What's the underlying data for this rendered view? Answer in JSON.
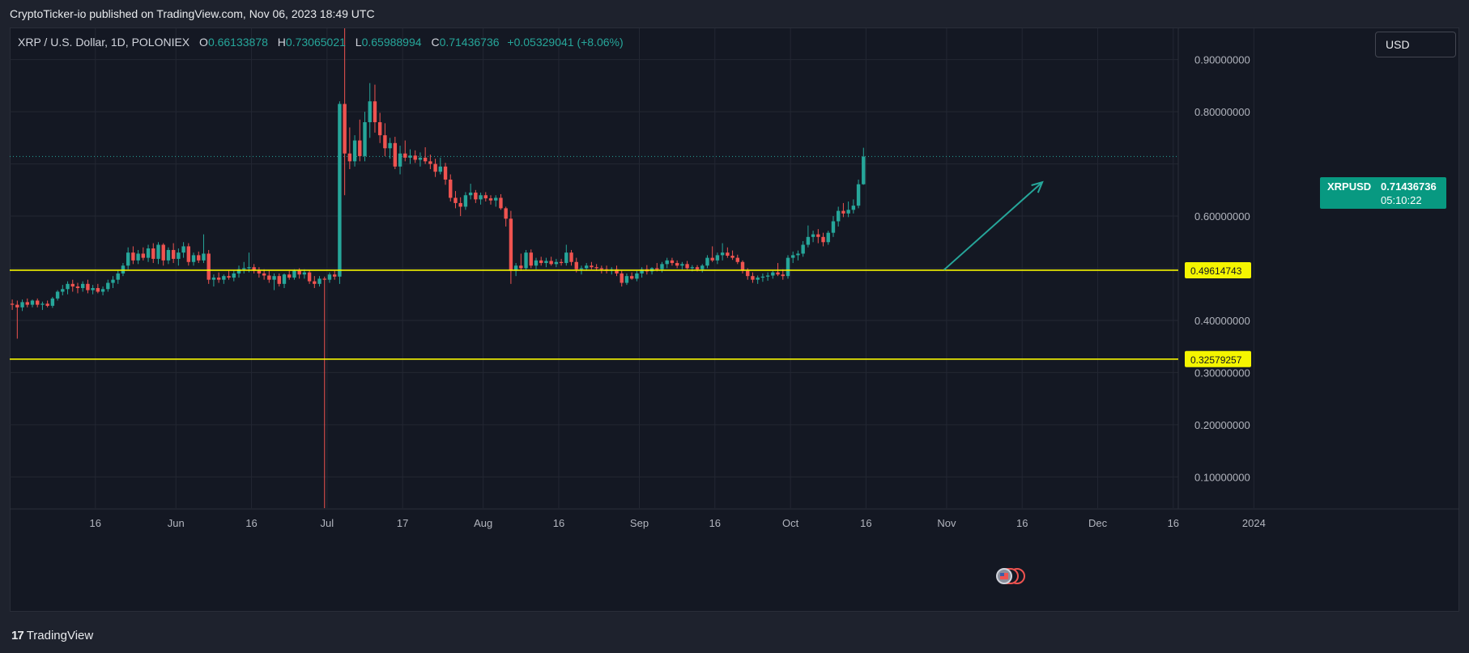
{
  "header": {
    "publish_text": "CryptoTicker-io published on TradingView.com, Nov 06, 2023 18:49 UTC"
  },
  "legend": {
    "symbol": "XRP / U.S. Dollar, 1D, POLONIEX",
    "open_label": "O",
    "open": "0.66133878",
    "high_label": "H",
    "high": "0.73065021",
    "low_label": "L",
    "low": "0.65988994",
    "close_label": "C",
    "close": "0.71436736",
    "change": "+0.05329041 (+8.06%)"
  },
  "currency_button": "USD",
  "footer": {
    "brand": "TradingView",
    "logo": "17"
  },
  "price_tag": {
    "symbol": "XRPUSD",
    "value": "0.71436736",
    "countdown": "05:10:22",
    "color": "#089981"
  },
  "colors": {
    "up": "#26a69a",
    "down": "#ef5350",
    "level": "#f5f500",
    "arrow": "#26a69a",
    "background": "#141823"
  },
  "chart_data": {
    "type": "candlestick",
    "ylim": [
      0.04,
      0.96
    ],
    "y_ticks": [
      {
        "v": 0.9,
        "label": "0.90000000"
      },
      {
        "v": 0.8,
        "label": "0.80000000"
      },
      {
        "v": 0.6,
        "label": "0.60000000"
      },
      {
        "v": 0.4,
        "label": "0.40000000"
      },
      {
        "v": 0.3,
        "label": "0.30000000"
      },
      {
        "v": 0.2,
        "label": "0.20000000"
      },
      {
        "v": 0.1,
        "label": "0.10000000"
      }
    ],
    "x_ticks": [
      {
        "day": 17,
        "label": "16"
      },
      {
        "day": 33,
        "label": "Jun"
      },
      {
        "day": 48,
        "label": "16"
      },
      {
        "day": 63,
        "label": "Jul"
      },
      {
        "day": 78,
        "label": "17"
      },
      {
        "day": 94,
        "label": "Aug"
      },
      {
        "day": 109,
        "label": "16"
      },
      {
        "day": 125,
        "label": "Sep"
      },
      {
        "day": 140,
        "label": "16"
      },
      {
        "day": 155,
        "label": "Oct"
      },
      {
        "day": 170,
        "label": "16"
      },
      {
        "day": 186,
        "label": "Nov"
      },
      {
        "day": 201,
        "label": "16"
      },
      {
        "day": 216,
        "label": "Dec"
      },
      {
        "day": 231,
        "label": "16"
      },
      {
        "day": 247,
        "label": "2024"
      }
    ],
    "horizontal_levels": [
      {
        "value": 0.49614743,
        "label": "0.49614743"
      },
      {
        "value": 0.32579257,
        "label": "0.32579257"
      }
    ],
    "last_price": 0.71436736,
    "trend_arrow": {
      "start": [
        185.5,
        0.497
      ],
      "end": [
        205,
        0.665
      ]
    },
    "candles": [
      [
        0.432,
        0.44,
        0.42,
        0.43
      ],
      [
        0.43,
        0.438,
        0.365,
        0.425
      ],
      [
        0.425,
        0.44,
        0.418,
        0.435
      ],
      [
        0.435,
        0.442,
        0.425,
        0.43
      ],
      [
        0.43,
        0.44,
        0.425,
        0.438
      ],
      [
        0.438,
        0.442,
        0.425,
        0.43
      ],
      [
        0.43,
        0.436,
        0.42,
        0.432
      ],
      [
        0.432,
        0.438,
        0.425,
        0.428
      ],
      [
        0.428,
        0.445,
        0.424,
        0.442
      ],
      [
        0.442,
        0.458,
        0.438,
        0.455
      ],
      [
        0.455,
        0.468,
        0.448,
        0.46
      ],
      [
        0.46,
        0.475,
        0.45,
        0.47
      ],
      [
        0.47,
        0.478,
        0.455,
        0.465
      ],
      [
        0.465,
        0.472,
        0.452,
        0.462
      ],
      [
        0.462,
        0.475,
        0.455,
        0.47
      ],
      [
        0.47,
        0.478,
        0.452,
        0.458
      ],
      [
        0.458,
        0.468,
        0.45,
        0.462
      ],
      [
        0.462,
        0.47,
        0.452,
        0.455
      ],
      [
        0.455,
        0.465,
        0.448,
        0.46
      ],
      [
        0.46,
        0.478,
        0.455,
        0.472
      ],
      [
        0.472,
        0.485,
        0.462,
        0.478
      ],
      [
        0.478,
        0.495,
        0.47,
        0.49
      ],
      [
        0.49,
        0.51,
        0.485,
        0.505
      ],
      [
        0.505,
        0.54,
        0.498,
        0.53
      ],
      [
        0.53,
        0.542,
        0.508,
        0.515
      ],
      [
        0.515,
        0.535,
        0.508,
        0.528
      ],
      [
        0.528,
        0.54,
        0.515,
        0.52
      ],
      [
        0.52,
        0.545,
        0.512,
        0.538
      ],
      [
        0.538,
        0.548,
        0.51,
        0.518
      ],
      [
        0.518,
        0.55,
        0.508,
        0.545
      ],
      [
        0.545,
        0.548,
        0.505,
        0.515
      ],
      [
        0.515,
        0.54,
        0.508,
        0.535
      ],
      [
        0.535,
        0.548,
        0.51,
        0.518
      ],
      [
        0.518,
        0.538,
        0.505,
        0.53
      ],
      [
        0.53,
        0.55,
        0.52,
        0.542
      ],
      [
        0.542,
        0.548,
        0.505,
        0.512
      ],
      [
        0.512,
        0.53,
        0.505,
        0.525
      ],
      [
        0.525,
        0.532,
        0.51,
        0.515
      ],
      [
        0.515,
        0.565,
        0.51,
        0.528
      ],
      [
        0.528,
        0.535,
        0.47,
        0.478
      ],
      [
        0.478,
        0.488,
        0.465,
        0.482
      ],
      [
        0.482,
        0.492,
        0.472,
        0.478
      ],
      [
        0.478,
        0.488,
        0.47,
        0.485
      ],
      [
        0.485,
        0.495,
        0.478,
        0.482
      ],
      [
        0.482,
        0.495,
        0.475,
        0.49
      ],
      [
        0.49,
        0.505,
        0.482,
        0.498
      ],
      [
        0.498,
        0.512,
        0.49,
        0.5
      ],
      [
        0.5,
        0.53,
        0.492,
        0.502
      ],
      [
        0.502,
        0.508,
        0.49,
        0.495
      ],
      [
        0.495,
        0.502,
        0.482,
        0.49
      ],
      [
        0.49,
        0.498,
        0.478,
        0.486
      ],
      [
        0.486,
        0.495,
        0.472,
        0.478
      ],
      [
        0.478,
        0.49,
        0.458,
        0.485
      ],
      [
        0.485,
        0.49,
        0.465,
        0.47
      ],
      [
        0.47,
        0.49,
        0.462,
        0.488
      ],
      [
        0.488,
        0.495,
        0.478,
        0.482
      ],
      [
        0.482,
        0.498,
        0.478,
        0.495
      ],
      [
        0.495,
        0.5,
        0.48,
        0.488
      ],
      [
        0.488,
        0.498,
        0.48,
        0.492
      ],
      [
        0.492,
        0.496,
        0.47,
        0.475
      ],
      [
        0.475,
        0.485,
        0.462,
        0.47
      ],
      [
        0.47,
        0.485,
        0.465,
        0.48
      ],
      [
        0.48,
        0.484,
        0.04,
        0.478
      ],
      [
        0.478,
        0.492,
        0.472,
        0.488
      ],
      [
        0.488,
        0.495,
        0.478,
        0.484
      ],
      [
        0.484,
        0.82,
        0.47,
        0.815
      ],
      [
        0.815,
        0.96,
        0.64,
        0.72
      ],
      [
        0.72,
        0.77,
        0.69,
        0.705
      ],
      [
        0.705,
        0.755,
        0.695,
        0.745
      ],
      [
        0.745,
        0.785,
        0.705,
        0.715
      ],
      [
        0.715,
        0.8,
        0.705,
        0.78
      ],
      [
        0.78,
        0.855,
        0.75,
        0.82
      ],
      [
        0.82,
        0.852,
        0.76,
        0.78
      ],
      [
        0.78,
        0.798,
        0.74,
        0.755
      ],
      [
        0.755,
        0.778,
        0.715,
        0.73
      ],
      [
        0.73,
        0.75,
        0.71,
        0.74
      ],
      [
        0.74,
        0.752,
        0.69,
        0.695
      ],
      [
        0.695,
        0.735,
        0.68,
        0.72
      ],
      [
        0.72,
        0.745,
        0.705,
        0.712
      ],
      [
        0.712,
        0.728,
        0.7,
        0.716
      ],
      [
        0.716,
        0.726,
        0.702,
        0.708
      ],
      [
        0.708,
        0.722,
        0.695,
        0.712
      ],
      [
        0.712,
        0.732,
        0.7,
        0.705
      ],
      [
        0.705,
        0.718,
        0.69,
        0.7
      ],
      [
        0.7,
        0.71,
        0.675,
        0.685
      ],
      [
        0.685,
        0.712,
        0.68,
        0.695
      ],
      [
        0.695,
        0.702,
        0.66,
        0.67
      ],
      [
        0.67,
        0.68,
        0.628,
        0.635
      ],
      [
        0.635,
        0.648,
        0.615,
        0.625
      ],
      [
        0.625,
        0.636,
        0.6,
        0.618
      ],
      [
        0.618,
        0.646,
        0.612,
        0.64
      ],
      [
        0.64,
        0.662,
        0.632,
        0.645
      ],
      [
        0.645,
        0.65,
        0.625,
        0.632
      ],
      [
        0.632,
        0.645,
        0.622,
        0.64
      ],
      [
        0.64,
        0.646,
        0.628,
        0.634
      ],
      [
        0.634,
        0.64,
        0.622,
        0.63
      ],
      [
        0.63,
        0.64,
        0.618,
        0.635
      ],
      [
        0.635,
        0.642,
        0.612,
        0.615
      ],
      [
        0.615,
        0.618,
        0.58,
        0.595
      ],
      [
        0.595,
        0.61,
        0.47,
        0.495
      ],
      [
        0.495,
        0.51,
        0.485,
        0.505
      ],
      [
        0.505,
        0.528,
        0.495,
        0.5
      ],
      [
        0.5,
        0.535,
        0.496,
        0.53
      ],
      [
        0.53,
        0.536,
        0.5,
        0.505
      ],
      [
        0.505,
        0.52,
        0.498,
        0.515
      ],
      [
        0.515,
        0.522,
        0.505,
        0.51
      ],
      [
        0.51,
        0.52,
        0.502,
        0.514
      ],
      [
        0.514,
        0.522,
        0.505,
        0.508
      ],
      [
        0.508,
        0.518,
        0.502,
        0.512
      ],
      [
        0.512,
        0.518,
        0.505,
        0.51
      ],
      [
        0.51,
        0.545,
        0.505,
        0.53
      ],
      [
        0.53,
        0.535,
        0.505,
        0.512
      ],
      [
        0.512,
        0.52,
        0.492,
        0.498
      ],
      [
        0.498,
        0.505,
        0.488,
        0.5
      ],
      [
        0.5,
        0.51,
        0.495,
        0.505
      ],
      [
        0.505,
        0.512,
        0.498,
        0.502
      ],
      [
        0.502,
        0.508,
        0.495,
        0.5
      ],
      [
        0.5,
        0.505,
        0.49,
        0.498
      ],
      [
        0.498,
        0.505,
        0.49,
        0.495
      ],
      [
        0.495,
        0.502,
        0.488,
        0.498
      ],
      [
        0.498,
        0.505,
        0.485,
        0.49
      ],
      [
        0.49,
        0.495,
        0.465,
        0.472
      ],
      [
        0.472,
        0.49,
        0.468,
        0.485
      ],
      [
        0.485,
        0.492,
        0.478,
        0.48
      ],
      [
        0.48,
        0.495,
        0.475,
        0.49
      ],
      [
        0.49,
        0.502,
        0.482,
        0.498
      ],
      [
        0.498,
        0.506,
        0.488,
        0.494
      ],
      [
        0.494,
        0.502,
        0.488,
        0.5
      ],
      [
        0.5,
        0.51,
        0.494,
        0.498
      ],
      [
        0.498,
        0.512,
        0.492,
        0.508
      ],
      [
        0.508,
        0.52,
        0.5,
        0.515
      ],
      [
        0.515,
        0.52,
        0.505,
        0.51
      ],
      [
        0.51,
        0.515,
        0.5,
        0.505
      ],
      [
        0.505,
        0.512,
        0.498,
        0.508
      ],
      [
        0.508,
        0.514,
        0.498,
        0.5
      ],
      [
        0.5,
        0.506,
        0.494,
        0.502
      ],
      [
        0.502,
        0.506,
        0.494,
        0.498
      ],
      [
        0.498,
        0.508,
        0.492,
        0.505
      ],
      [
        0.505,
        0.525,
        0.5,
        0.52
      ],
      [
        0.52,
        0.542,
        0.512,
        0.515
      ],
      [
        0.515,
        0.53,
        0.508,
        0.525
      ],
      [
        0.525,
        0.548,
        0.515,
        0.53
      ],
      [
        0.53,
        0.54,
        0.52,
        0.524
      ],
      [
        0.524,
        0.534,
        0.516,
        0.52
      ],
      [
        0.52,
        0.526,
        0.508,
        0.512
      ],
      [
        0.512,
        0.515,
        0.49,
        0.495
      ],
      [
        0.495,
        0.5,
        0.478,
        0.485
      ],
      [
        0.485,
        0.492,
        0.472,
        0.478
      ],
      [
        0.478,
        0.486,
        0.47,
        0.482
      ],
      [
        0.482,
        0.49,
        0.474,
        0.484
      ],
      [
        0.484,
        0.492,
        0.476,
        0.486
      ],
      [
        0.486,
        0.495,
        0.48,
        0.492
      ],
      [
        0.492,
        0.51,
        0.485,
        0.488
      ],
      [
        0.488,
        0.498,
        0.478,
        0.485
      ],
      [
        0.485,
        0.525,
        0.48,
        0.52
      ],
      [
        0.52,
        0.532,
        0.51,
        0.525
      ],
      [
        0.525,
        0.534,
        0.515,
        0.528
      ],
      [
        0.528,
        0.552,
        0.522,
        0.545
      ],
      [
        0.545,
        0.582,
        0.54,
        0.56
      ],
      [
        0.56,
        0.572,
        0.55,
        0.565
      ],
      [
        0.565,
        0.575,
        0.548,
        0.56
      ],
      [
        0.56,
        0.568,
        0.542,
        0.55
      ],
      [
        0.55,
        0.572,
        0.545,
        0.568
      ],
      [
        0.568,
        0.6,
        0.56,
        0.59
      ],
      [
        0.59,
        0.618,
        0.58,
        0.61
      ],
      [
        0.61,
        0.625,
        0.598,
        0.605
      ],
      [
        0.605,
        0.628,
        0.598,
        0.612
      ],
      [
        0.612,
        0.632,
        0.605,
        0.62
      ],
      [
        0.62,
        0.67,
        0.615,
        0.661
      ],
      [
        0.661,
        0.731,
        0.66,
        0.714
      ]
    ]
  }
}
